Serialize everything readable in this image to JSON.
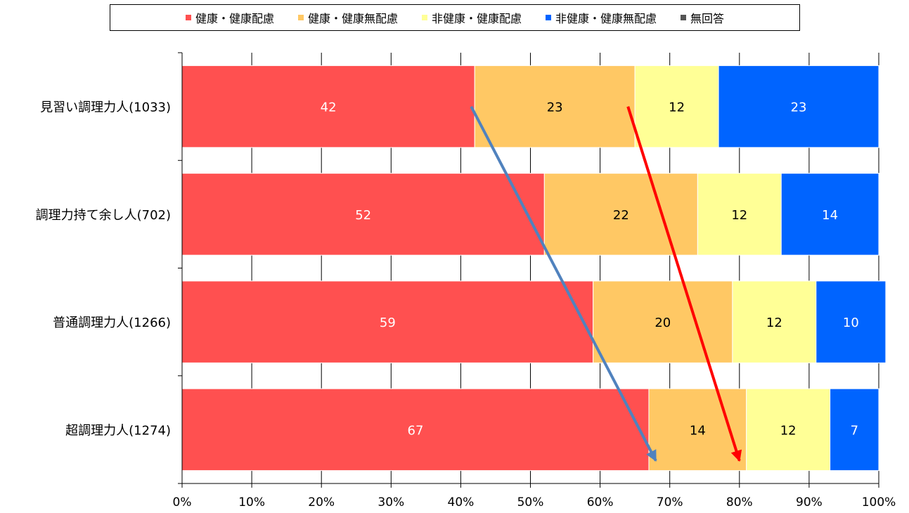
{
  "chart_data": {
    "type": "bar",
    "orientation": "horizontal",
    "stacked": "percent",
    "categories": [
      "見習い調理力人(1033)",
      "調理力持て余し人(702)",
      "普通調理力人(1266)",
      "超調理力人(1274)"
    ],
    "series": [
      {
        "name": "健康・健康配慮",
        "color": "#ff5050",
        "values": [
          42,
          52,
          59,
          67
        ]
      },
      {
        "name": "健康・健康無配慮",
        "color": "#ffc864",
        "values": [
          23,
          22,
          20,
          14
        ]
      },
      {
        "name": "非健康・健康配慮",
        "color": "#ffff96",
        "values": [
          12,
          12,
          12,
          12
        ]
      },
      {
        "name": "非健康・健康無配慮",
        "color": "#0064ff",
        "values": [
          23,
          14,
          10,
          7
        ]
      },
      {
        "name": "無回答",
        "color": "#555555",
        "values": [
          0,
          0,
          0,
          0
        ]
      }
    ],
    "xlim": [
      0,
      100
    ],
    "xticks": [
      "0%",
      "10%",
      "20%",
      "30%",
      "40%",
      "50%",
      "60%",
      "70%",
      "80%",
      "90%",
      "100%"
    ],
    "grid": true,
    "legend_position": "top",
    "annotations": [
      {
        "type": "arrow",
        "color": "#5082be",
        "from": {
          "category": "見習い調理力人(1033)",
          "x": 41.5
        },
        "to": {
          "category": "超調理力人(1274)",
          "x": 68
        }
      },
      {
        "type": "arrow",
        "color": "#ff0000",
        "from": {
          "category": "見習い調理力人(1033)",
          "x": 64
        },
        "to": {
          "category": "超調理力人(1274)",
          "x": 80
        }
      }
    ]
  }
}
